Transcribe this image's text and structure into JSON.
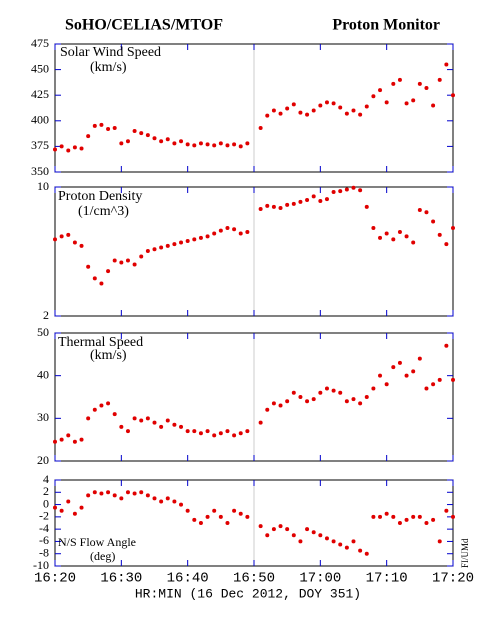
{
  "title_left": "SoHO/CELIAS/MTOF",
  "title_right": "Proton Monitor",
  "x_label": "HR:MIN (16 Dec 2012, DOY 351)",
  "credit": "FI/UMd",
  "chart_data": [
    {
      "type": "scatter",
      "label": "Solar Wind Speed",
      "unit": "(km/s)",
      "color": "#e00000",
      "x": [
        "16:20",
        "16:21",
        "16:22",
        "16:23",
        "16:24",
        "16:25",
        "16:26",
        "16:27",
        "16:28",
        "16:29",
        "16:30",
        "16:31",
        "16:32",
        "16:33",
        "16:34",
        "16:35",
        "16:36",
        "16:37",
        "16:38",
        "16:39",
        "16:40",
        "16:41",
        "16:42",
        "16:43",
        "16:44",
        "16:45",
        "16:46",
        "16:47",
        "16:48",
        "16:49",
        "16:51",
        "16:52",
        "16:53",
        "16:54",
        "16:55",
        "16:56",
        "16:57",
        "16:58",
        "16:59",
        "17:00",
        "17:01",
        "17:02",
        "17:03",
        "17:04",
        "17:05",
        "17:06",
        "17:07",
        "17:08",
        "17:09",
        "17:10",
        "17:11",
        "17:12",
        "17:13",
        "17:14",
        "17:15",
        "17:16",
        "17:17",
        "17:18",
        "17:19",
        "17:20"
      ],
      "values": [
        372,
        375,
        371,
        374,
        373,
        385,
        395,
        396,
        392,
        393,
        378,
        380,
        390,
        388,
        386,
        383,
        380,
        382,
        378,
        380,
        377,
        376,
        378,
        377,
        376,
        378,
        376,
        377,
        375,
        378,
        393,
        405,
        410,
        407,
        412,
        416,
        408,
        406,
        410,
        415,
        418,
        417,
        413,
        407,
        410,
        406,
        414,
        424,
        430,
        418,
        436,
        440,
        417,
        420,
        436,
        432,
        415,
        440,
        455,
        425
      ],
      "xlim": [
        "16:20",
        "17:20"
      ],
      "xticks": [
        "16:20",
        "16:30",
        "16:40",
        "16:50",
        "17:00",
        "17:10",
        "17:20"
      ],
      "ylim": [
        350,
        475
      ],
      "yticks": [
        350,
        375,
        400,
        425,
        450,
        475
      ]
    },
    {
      "type": "scatter",
      "label": "Proton Density",
      "unit": "(1/cm^3)",
      "color": "#e00000",
      "log": true,
      "x": [
        "16:20",
        "16:21",
        "16:22",
        "16:23",
        "16:24",
        "16:25",
        "16:26",
        "16:27",
        "16:28",
        "16:29",
        "16:30",
        "16:31",
        "16:32",
        "16:33",
        "16:34",
        "16:35",
        "16:36",
        "16:37",
        "16:38",
        "16:39",
        "16:40",
        "16:41",
        "16:42",
        "16:43",
        "16:44",
        "16:45",
        "16:46",
        "16:47",
        "16:48",
        "16:49",
        "16:51",
        "16:52",
        "16:53",
        "16:54",
        "16:55",
        "16:56",
        "16:57",
        "16:58",
        "16:59",
        "17:00",
        "17:01",
        "17:02",
        "17:03",
        "17:04",
        "17:05",
        "17:06",
        "17:07",
        "17:08",
        "17:09",
        "17:10",
        "17:11",
        "17:12",
        "17:13",
        "17:14",
        "17:15",
        "17:16",
        "17:17",
        "17:18",
        "17:19",
        "17:20"
      ],
      "values": [
        5.2,
        5.4,
        5.5,
        5.0,
        4.8,
        3.7,
        3.2,
        3.0,
        3.5,
        4.0,
        3.9,
        4.0,
        3.8,
        4.2,
        4.5,
        4.6,
        4.7,
        4.8,
        4.9,
        5.0,
        5.1,
        5.2,
        5.3,
        5.4,
        5.6,
        5.8,
        6.0,
        5.9,
        5.6,
        5.7,
        7.6,
        7.9,
        7.8,
        7.7,
        8.0,
        8.1,
        8.3,
        8.5,
        8.9,
        8.4,
        8.6,
        9.4,
        9.5,
        9.7,
        9.9,
        9.6,
        7.8,
        6.0,
        5.3,
        5.6,
        5.2,
        5.7,
        5.4,
        5.0,
        7.5,
        7.3,
        6.5,
        5.5,
        4.9,
        6.0
      ],
      "xlim": [
        "16:20",
        "17:20"
      ],
      "xticks": [
        "16:20",
        "16:30",
        "16:40",
        "16:50",
        "17:00",
        "17:10",
        "17:20"
      ],
      "ylim": [
        2,
        10
      ],
      "yticks": [
        2,
        10
      ]
    },
    {
      "type": "scatter",
      "label": "Thermal Speed",
      "unit": "(km/s)",
      "color": "#e00000",
      "x": [
        "16:20",
        "16:21",
        "16:22",
        "16:23",
        "16:24",
        "16:25",
        "16:26",
        "16:27",
        "16:28",
        "16:29",
        "16:30",
        "16:31",
        "16:32",
        "16:33",
        "16:34",
        "16:35",
        "16:36",
        "16:37",
        "16:38",
        "16:39",
        "16:40",
        "16:41",
        "16:42",
        "16:43",
        "16:44",
        "16:45",
        "16:46",
        "16:47",
        "16:48",
        "16:49",
        "16:51",
        "16:52",
        "16:53",
        "16:54",
        "16:55",
        "16:56",
        "16:57",
        "16:58",
        "16:59",
        "17:00",
        "17:01",
        "17:02",
        "17:03",
        "17:04",
        "17:05",
        "17:06",
        "17:07",
        "17:08",
        "17:09",
        "17:10",
        "17:11",
        "17:12",
        "17:13",
        "17:14",
        "17:15",
        "17:16",
        "17:17",
        "17:18",
        "17:19",
        "17:20"
      ],
      "values": [
        24.5,
        25,
        26,
        24.5,
        25,
        30,
        32,
        33,
        33.5,
        31,
        28,
        27,
        30,
        29.5,
        30,
        29,
        28,
        29.5,
        28.5,
        28,
        27,
        27,
        26.5,
        27,
        26,
        26.5,
        27,
        26,
        26.5,
        27,
        29,
        32,
        33.5,
        33,
        34,
        36,
        35,
        34,
        34.5,
        36,
        37,
        36.5,
        36,
        34,
        34.5,
        33.5,
        35,
        37,
        40,
        38,
        42,
        43,
        40,
        41,
        44,
        37,
        38,
        39,
        47,
        39
      ],
      "xlim": [
        "16:20",
        "17:20"
      ],
      "xticks": [
        "16:20",
        "16:30",
        "16:40",
        "16:50",
        "17:00",
        "17:10",
        "17:20"
      ],
      "ylim": [
        20,
        50
      ],
      "yticks": [
        20,
        30,
        40,
        50
      ]
    },
    {
      "type": "scatter",
      "label": "N/S Flow Angle",
      "unit": "(deg)",
      "color": "#e00000",
      "x": [
        "16:20",
        "16:21",
        "16:22",
        "16:23",
        "16:24",
        "16:25",
        "16:26",
        "16:27",
        "16:28",
        "16:29",
        "16:30",
        "16:31",
        "16:32",
        "16:33",
        "16:34",
        "16:35",
        "16:36",
        "16:37",
        "16:38",
        "16:39",
        "16:40",
        "16:41",
        "16:42",
        "16:43",
        "16:44",
        "16:45",
        "16:46",
        "16:47",
        "16:48",
        "16:49",
        "16:51",
        "16:52",
        "16:53",
        "16:54",
        "16:55",
        "16:56",
        "16:57",
        "16:58",
        "16:59",
        "17:00",
        "17:01",
        "17:02",
        "17:03",
        "17:04",
        "17:05",
        "17:06",
        "17:07",
        "17:08",
        "17:09",
        "17:10",
        "17:11",
        "17:12",
        "17:13",
        "17:14",
        "17:15",
        "17:16",
        "17:17",
        "17:18",
        "17:19",
        "17:20"
      ],
      "values": [
        -0.5,
        -1,
        0.5,
        -1.5,
        -0.5,
        1.5,
        2,
        1.8,
        2,
        1.5,
        1,
        2,
        1.8,
        2,
        1.5,
        1,
        0.5,
        1,
        0.5,
        0,
        -1,
        -2.5,
        -3,
        -2,
        -1,
        -2,
        -3,
        -1,
        -1.5,
        -2,
        -3.5,
        -5,
        -4,
        -3.5,
        -4,
        -5,
        -6,
        -4,
        -4.5,
        -5,
        -5.5,
        -6,
        -6.5,
        -7,
        -6,
        -7.5,
        -8,
        -2,
        -2,
        -1.5,
        -2,
        -3,
        -2.5,
        -2,
        -2,
        -3,
        -2.5,
        -6,
        -1,
        -2
      ],
      "xlim": [
        "16:20",
        "17:20"
      ],
      "xticks": [
        "16:20",
        "16:30",
        "16:40",
        "16:50",
        "17:00",
        "17:10",
        "17:20"
      ],
      "ylim": [
        -10,
        4
      ],
      "yticks": [
        -10,
        -8,
        -6,
        -4,
        -2,
        0,
        2,
        4
      ]
    }
  ]
}
